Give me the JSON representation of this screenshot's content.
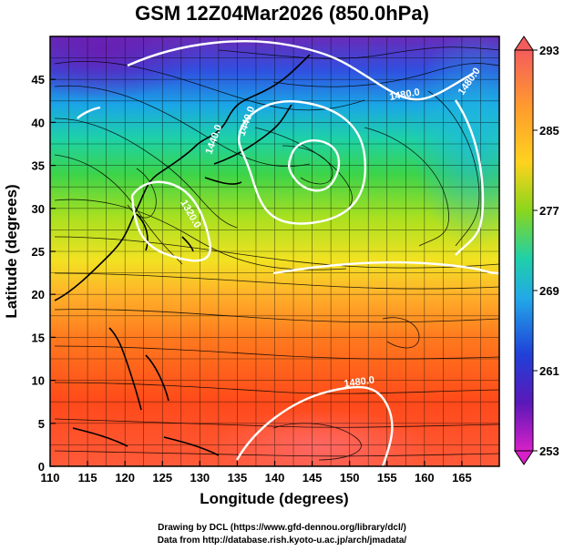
{
  "title": "GSM 12Z04Mar2026 (850.0hPa)",
  "xaxis": {
    "label": "Longitude (degrees)",
    "range": [
      110,
      170
    ],
    "ticks": [
      "110",
      "115",
      "120",
      "125",
      "130",
      "135",
      "140",
      "145",
      "150",
      "155",
      "160",
      "165"
    ]
  },
  "yaxis": {
    "label": "Latitude  (degrees)",
    "range": [
      0,
      50
    ],
    "ticks": [
      "0",
      "5",
      "10",
      "15",
      "20",
      "25",
      "30",
      "35",
      "40",
      "45"
    ]
  },
  "colorbar": {
    "range": [
      253,
      293
    ],
    "labels": [
      "293",
      "285",
      "277",
      "269",
      "261",
      "253"
    ],
    "colors": [
      "#f45c5c",
      "#ff9a2e",
      "#ffd21e",
      "#8ad61c",
      "#1fd0a8",
      "#22a8e8",
      "#2040d8",
      "#5a18b8",
      "#d820c8"
    ]
  },
  "contours": [
    {
      "label": "1480.0"
    },
    {
      "label": "1480.0"
    },
    {
      "label": "1440.0"
    },
    {
      "label": "1440.0"
    },
    {
      "label": "1320.0"
    },
    {
      "label": "1480.0"
    }
  ],
  "credits": {
    "line1": "Drawing by DCL (https://www.gfd-dennou.org/library/dcl/)",
    "line2": "Data from http://database.rish.kyoto-u.ac.jp/arch/jmadata/"
  }
}
